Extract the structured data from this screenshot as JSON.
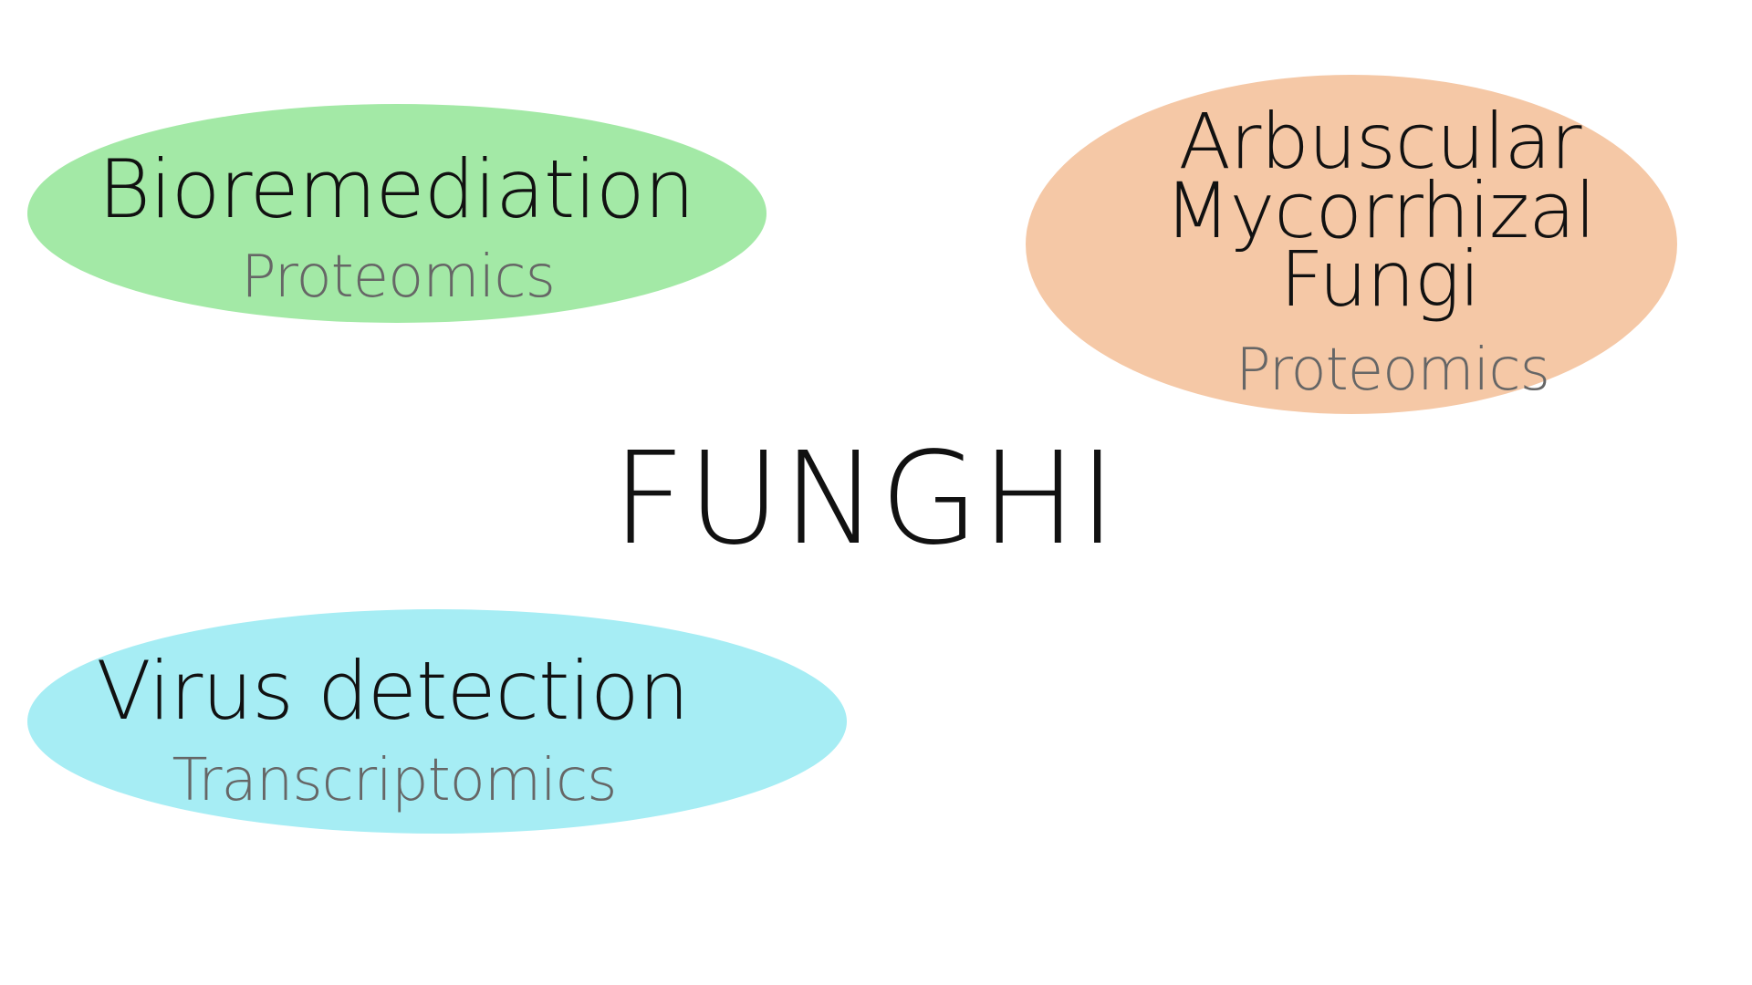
{
  "center": {
    "title": "FUNGHI"
  },
  "nodes": [
    {
      "title": "Bioremediation",
      "subtitle": "Proteomics",
      "color": "#a3e9a6"
    },
    {
      "title_lines": [
        "Arbuscular",
        "Mycorrhizal",
        "Fungi"
      ],
      "subtitle": "Proteomics",
      "color": "#f5c8a6"
    },
    {
      "title": "Virus detection",
      "subtitle": "Transcriptomics",
      "color": "#a6edf4"
    }
  ]
}
